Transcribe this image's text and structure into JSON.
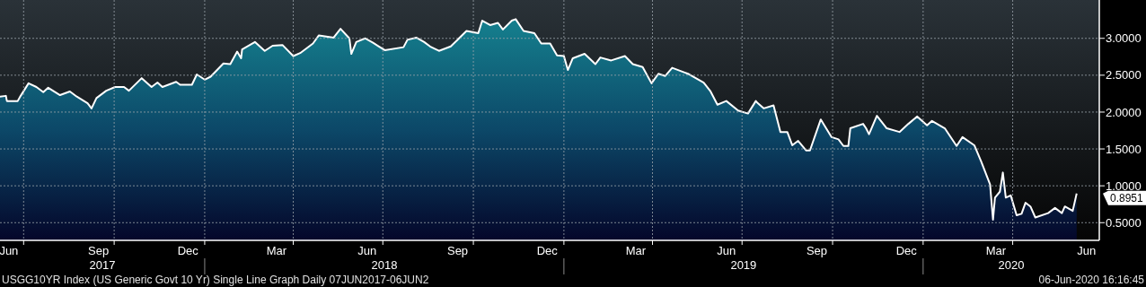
{
  "chart_data": {
    "type": "area",
    "x": [
      "2017-06-07",
      "2017-06-13",
      "2017-06-14",
      "2017-06-25",
      "2017-06-28",
      "2017-07-06",
      "2017-07-14",
      "2017-07-21",
      "2017-07-26",
      "2017-08-07",
      "2017-08-17",
      "2017-08-24",
      "2017-09-04",
      "2017-09-08",
      "2017-09-13",
      "2017-09-23",
      "2017-10-02",
      "2017-10-11",
      "2017-10-16",
      "2017-10-29",
      "2017-11-08",
      "2017-11-14",
      "2017-11-19",
      "2017-12-03",
      "2017-12-07",
      "2017-12-19",
      "2017-12-24",
      "2018-01-01",
      "2018-01-07",
      "2018-01-20",
      "2018-01-27",
      "2018-02-03",
      "2018-02-07",
      "2018-02-08",
      "2018-02-21",
      "2018-03-03",
      "2018-03-11",
      "2018-03-21",
      "2018-04-01",
      "2018-04-08",
      "2018-04-21",
      "2018-04-27",
      "2018-05-12",
      "2018-05-19",
      "2018-05-28",
      "2018-05-30",
      "2018-06-04",
      "2018-06-13",
      "2018-06-21",
      "2018-06-27",
      "2018-07-03",
      "2018-07-22",
      "2018-07-26",
      "2018-08-04",
      "2018-08-12",
      "2018-08-18",
      "2018-08-27",
      "2018-09-08",
      "2018-09-24",
      "2018-10-06",
      "2018-10-10",
      "2018-10-18",
      "2018-10-26",
      "2018-10-31",
      "2018-11-09",
      "2018-11-13",
      "2018-11-21",
      "2018-12-02",
      "2018-12-09",
      "2018-12-18",
      "2018-12-25",
      "2019-01-01",
      "2019-01-05",
      "2019-01-10",
      "2019-01-22",
      "2019-02-02",
      "2019-02-07",
      "2019-02-18",
      "2019-03-04",
      "2019-03-12",
      "2019-03-22",
      "2019-03-31",
      "2019-04-07",
      "2019-04-14",
      "2019-04-21",
      "2019-05-07",
      "2019-05-23",
      "2019-05-30",
      "2019-06-06",
      "2019-06-15",
      "2019-06-27",
      "2019-07-07",
      "2019-07-15",
      "2019-07-17",
      "2019-07-23",
      "2019-08-02",
      "2019-08-09",
      "2019-08-16",
      "2019-08-21",
      "2019-08-27",
      "2019-09-04",
      "2019-09-08",
      "2019-09-19",
      "2019-09-30",
      "2019-10-07",
      "2019-10-12",
      "2019-10-17",
      "2019-10-19",
      "2019-11-01",
      "2019-11-04",
      "2019-11-07",
      "2019-11-15",
      "2019-11-25",
      "2019-12-08",
      "2019-12-17",
      "2019-12-26",
      "2020-01-05",
      "2020-01-10",
      "2020-01-23",
      "2020-02-04",
      "2020-02-10",
      "2020-02-22",
      "2020-02-29",
      "2020-03-09",
      "2020-03-12",
      "2020-03-14",
      "2020-03-19",
      "2020-03-22",
      "2020-03-25",
      "2020-03-30",
      "2020-04-05",
      "2020-04-10",
      "2020-04-14",
      "2020-04-19",
      "2020-04-24",
      "2020-05-07",
      "2020-05-14",
      "2020-05-21",
      "2020-05-24",
      "2020-06-01",
      "2020-06-05"
    ],
    "series": [
      {
        "color": "#ffffff",
        "values": [
          2.21,
          2.22,
          2.15,
          2.15,
          2.22,
          2.39,
          2.34,
          2.27,
          2.33,
          2.23,
          2.28,
          2.21,
          2.12,
          2.05,
          2.19,
          2.29,
          2.34,
          2.34,
          2.29,
          2.46,
          2.34,
          2.4,
          2.34,
          2.41,
          2.37,
          2.37,
          2.51,
          2.44,
          2.48,
          2.66,
          2.65,
          2.82,
          2.73,
          2.85,
          2.95,
          2.83,
          2.9,
          2.91,
          2.76,
          2.8,
          2.93,
          3.04,
          3.01,
          3.13,
          3.0,
          2.79,
          2.95,
          3.0,
          2.94,
          2.89,
          2.84,
          2.88,
          2.98,
          3.01,
          2.95,
          2.89,
          2.83,
          2.89,
          3.1,
          3.07,
          3.24,
          3.18,
          3.21,
          3.12,
          3.24,
          3.26,
          3.1,
          3.07,
          2.93,
          2.93,
          2.77,
          2.76,
          2.57,
          2.73,
          2.79,
          2.65,
          2.74,
          2.7,
          2.76,
          2.65,
          2.61,
          2.39,
          2.52,
          2.49,
          2.6,
          2.52,
          2.4,
          2.28,
          2.1,
          2.15,
          2.02,
          1.98,
          2.15,
          2.12,
          2.05,
          2.09,
          1.73,
          1.73,
          1.55,
          1.61,
          1.48,
          1.48,
          1.9,
          1.66,
          1.63,
          1.54,
          1.54,
          1.78,
          1.84,
          1.78,
          1.7,
          1.95,
          1.78,
          1.73,
          1.84,
          1.94,
          1.82,
          1.88,
          1.78,
          1.54,
          1.66,
          1.55,
          1.33,
          1.02,
          0.54,
          0.84,
          0.92,
          1.18,
          0.84,
          0.87,
          0.6,
          0.62,
          0.77,
          0.72,
          0.57,
          0.63,
          0.7,
          0.63,
          0.72,
          0.66,
          0.8951
        ]
      }
    ],
    "xlim": [
      "2017-06-07",
      "2020-06-28"
    ],
    "xticks": [
      {
        "value": "2017-06-16",
        "label": "Jun"
      },
      {
        "value": "2017-07-01",
        "label": null
      },
      {
        "value": "2017-09-15",
        "label": "Sep"
      },
      {
        "value": "2017-10-01",
        "label": null
      },
      {
        "value": "2017-12-15",
        "label": "Dec"
      },
      {
        "value": "2018-01-01",
        "label": null
      },
      {
        "value": "2018-03-15",
        "label": "Mar"
      },
      {
        "value": "2018-04-01",
        "label": null
      },
      {
        "value": "2018-06-15",
        "label": "Jun"
      },
      {
        "value": "2018-07-01",
        "label": null
      },
      {
        "value": "2018-09-15",
        "label": "Sep"
      },
      {
        "value": "2018-10-01",
        "label": null
      },
      {
        "value": "2018-12-15",
        "label": "Dec"
      },
      {
        "value": "2019-01-01",
        "label": null
      },
      {
        "value": "2019-03-15",
        "label": "Mar"
      },
      {
        "value": "2019-04-01",
        "label": null
      },
      {
        "value": "2019-06-15",
        "label": "Jun"
      },
      {
        "value": "2019-07-01",
        "label": null
      },
      {
        "value": "2019-09-15",
        "label": "Sep"
      },
      {
        "value": "2019-10-01",
        "label": null
      },
      {
        "value": "2019-12-15",
        "label": "Dec"
      },
      {
        "value": "2020-01-01",
        "label": null
      },
      {
        "value": "2020-03-15",
        "label": "Mar"
      },
      {
        "value": "2020-04-01",
        "label": null
      },
      {
        "value": "2020-06-15",
        "label": "Jun"
      }
    ],
    "ylim": [
      0.26,
      3.52
    ],
    "yticks": [
      {
        "value": 0.5,
        "label": "0.5000"
      },
      {
        "value": 1,
        "label": "1.0000"
      },
      {
        "value": 1.5,
        "label": "1.5000"
      },
      {
        "value": 2,
        "label": "2.0000"
      },
      {
        "value": 2.5,
        "label": "2.5000"
      },
      {
        "value": 3,
        "label": "3.0000"
      }
    ],
    "grid": true,
    "annotations": [
      "0.8951",
      "2017",
      "2018",
      "2019",
      "2020",
      "USGG10YR Index (US Generic Govt 10 Yr) Single Line Graph  Daily 07JUN2017-06JUN2",
      "06-Jun-2020 16:16:45"
    ]
  }
}
